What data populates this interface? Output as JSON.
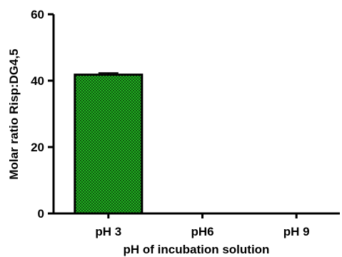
{
  "chart_data": {
    "type": "bar",
    "title": "",
    "xlabel": "pH of incubation solution",
    "ylabel": "Molar ratio Risp:DG4,5",
    "categories": [
      "pH 3",
      "pH6",
      "pH 9"
    ],
    "values": [
      41.8,
      0,
      0
    ],
    "error": [
      0.5,
      0,
      0
    ],
    "ylim": [
      0,
      60
    ],
    "yticks": [
      "0",
      "20",
      "40",
      "60"
    ],
    "grid": false,
    "legend": "none",
    "bar_fill": "#22b022",
    "bar_pattern_dark": "#0f5a0f",
    "bar_stroke": "#000000"
  }
}
